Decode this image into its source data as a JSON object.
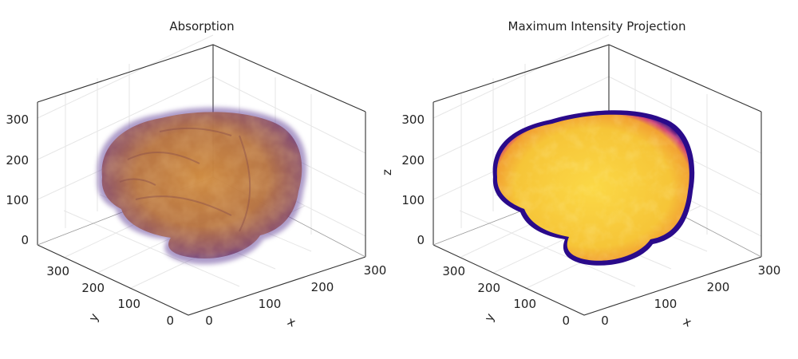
{
  "chart_data": [
    {
      "type": "volume-3d",
      "title": "Absorption",
      "xlabel": "x",
      "ylabel": "y",
      "zlabel": "",
      "xlim": [
        0,
        330
      ],
      "ylim": [
        0,
        330
      ],
      "zlim": [
        0,
        330
      ],
      "x_ticks": [
        "0",
        "100",
        "200",
        "300"
      ],
      "y_ticks": [
        "0",
        "100",
        "200",
        "300"
      ],
      "z_ticks": [
        "0",
        "100",
        "200",
        "300"
      ],
      "grid": true,
      "colormap": "plasma",
      "colors": {
        "edge": "#5a3e9a",
        "body": "#c4803f",
        "highlight": "#e0a13c"
      }
    },
    {
      "type": "volume-3d",
      "title": "Maximum Intensity Projection",
      "xlabel": "x",
      "ylabel": "y",
      "zlabel": "z",
      "xlim": [
        0,
        330
      ],
      "ylim": [
        0,
        330
      ],
      "zlim": [
        0,
        330
      ],
      "x_ticks": [
        "0",
        "100",
        "200",
        "300"
      ],
      "y_ticks": [
        "0",
        "100",
        "200",
        "300"
      ],
      "z_ticks": [
        "0",
        "100",
        "200",
        "300"
      ],
      "grid": true,
      "colormap": "plasma",
      "colors": {
        "edge": "#2a0a8a",
        "mid": "#c9337e",
        "body": "#f7c93a",
        "highlight": "#fde84a"
      }
    }
  ]
}
